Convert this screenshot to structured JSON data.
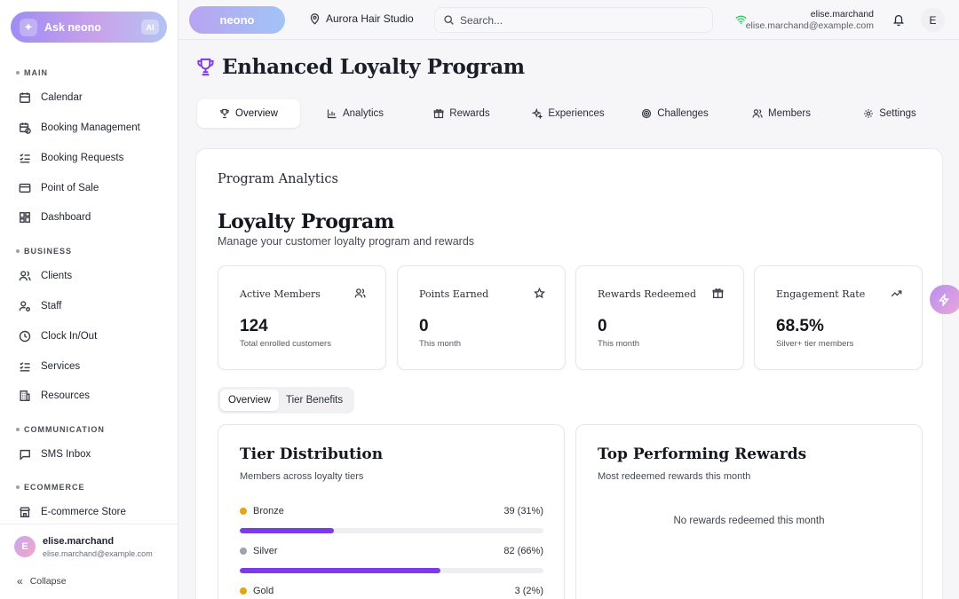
{
  "assistant": {
    "label": "Ask neono",
    "badge": "AI"
  },
  "sidebar": {
    "sections": [
      {
        "title": "MAIN",
        "items": [
          {
            "label": "Calendar",
            "icon": "calendar-icon"
          },
          {
            "label": "Booking Management",
            "icon": "calendar-clock-icon"
          },
          {
            "label": "Booking Requests",
            "icon": "list-check-icon"
          },
          {
            "label": "Point of Sale",
            "icon": "credit-card-icon"
          },
          {
            "label": "Dashboard",
            "icon": "dashboard-grid-icon"
          }
        ]
      },
      {
        "title": "BUSINESS",
        "items": [
          {
            "label": "Clients",
            "icon": "users-icon"
          },
          {
            "label": "Staff",
            "icon": "user-cog-icon"
          },
          {
            "label": "Clock In/Out",
            "icon": "clock-icon"
          },
          {
            "label": "Services",
            "icon": "list-check-icon"
          },
          {
            "label": "Resources",
            "icon": "building-icon"
          }
        ]
      },
      {
        "title": "COMMUNICATION",
        "items": [
          {
            "label": "SMS Inbox",
            "icon": "message-square-icon"
          }
        ]
      },
      {
        "title": "ECOMMERCE",
        "items": [
          {
            "label": "E-commerce Store",
            "icon": "store-icon"
          }
        ]
      }
    ],
    "user": {
      "initial": "E",
      "name": "elise.marchand",
      "email": "elise.marchand@example.com"
    },
    "collapse_label": "Collapse"
  },
  "topbar": {
    "logo": "neono",
    "location": "Aurora Hair Studio",
    "search_placeholder": "Search...",
    "user_name": "elise.marchand",
    "user_email": "elise.marchand@example.com",
    "avatar_initial": "E"
  },
  "page": {
    "title": "Enhanced Loyalty Program",
    "tabs": [
      {
        "label": "Overview",
        "icon": "trophy-icon",
        "active": true
      },
      {
        "label": "Analytics",
        "icon": "bar-chart-icon"
      },
      {
        "label": "Rewards",
        "icon": "gift-icon"
      },
      {
        "label": "Experiences",
        "icon": "sparkles-icon"
      },
      {
        "label": "Challenges",
        "icon": "target-icon"
      },
      {
        "label": "Members",
        "icon": "users-icon"
      },
      {
        "label": "Settings",
        "icon": "gear-icon"
      }
    ]
  },
  "analytics": {
    "heading": "Program Analytics",
    "title": "Loyalty Program",
    "subtitle": "Manage your customer loyalty program and rewards",
    "stats": [
      {
        "title": "Active Members",
        "value": "124",
        "sub": "Total enrolled customers",
        "icon": "users-icon"
      },
      {
        "title": "Points Earned",
        "value": "0",
        "sub": "This month",
        "icon": "star-icon"
      },
      {
        "title": "Rewards Redeemed",
        "value": "0",
        "sub": "This month",
        "icon": "gift-icon"
      },
      {
        "title": "Engagement Rate",
        "value": "68.5%",
        "sub": "Silver+ tier members",
        "icon": "trending-up-icon"
      }
    ],
    "subtabs": [
      {
        "label": "Overview",
        "active": true
      },
      {
        "label": "Tier Benefits"
      }
    ],
    "tier_distribution": {
      "title": "Tier Distribution",
      "subtitle": "Members across loyalty tiers",
      "tiers": [
        {
          "name": "Bronze",
          "value": "39 (31%)",
          "pct": 31,
          "color": "#e2a614"
        },
        {
          "name": "Silver",
          "value": "82 (66%)",
          "pct": 66,
          "color": "#9ca3af"
        },
        {
          "name": "Gold",
          "value": "3 (2%)",
          "pct": 2,
          "color": "#e2a614"
        }
      ]
    },
    "top_rewards": {
      "title": "Top Performing Rewards",
      "subtitle": "Most redeemed rewards this month",
      "empty": "No rewards redeemed this month"
    }
  },
  "colors": {
    "accent": "#7c3aed",
    "bronze": "#e2a614",
    "silver": "#9ca3af",
    "online": "#22c55e"
  }
}
